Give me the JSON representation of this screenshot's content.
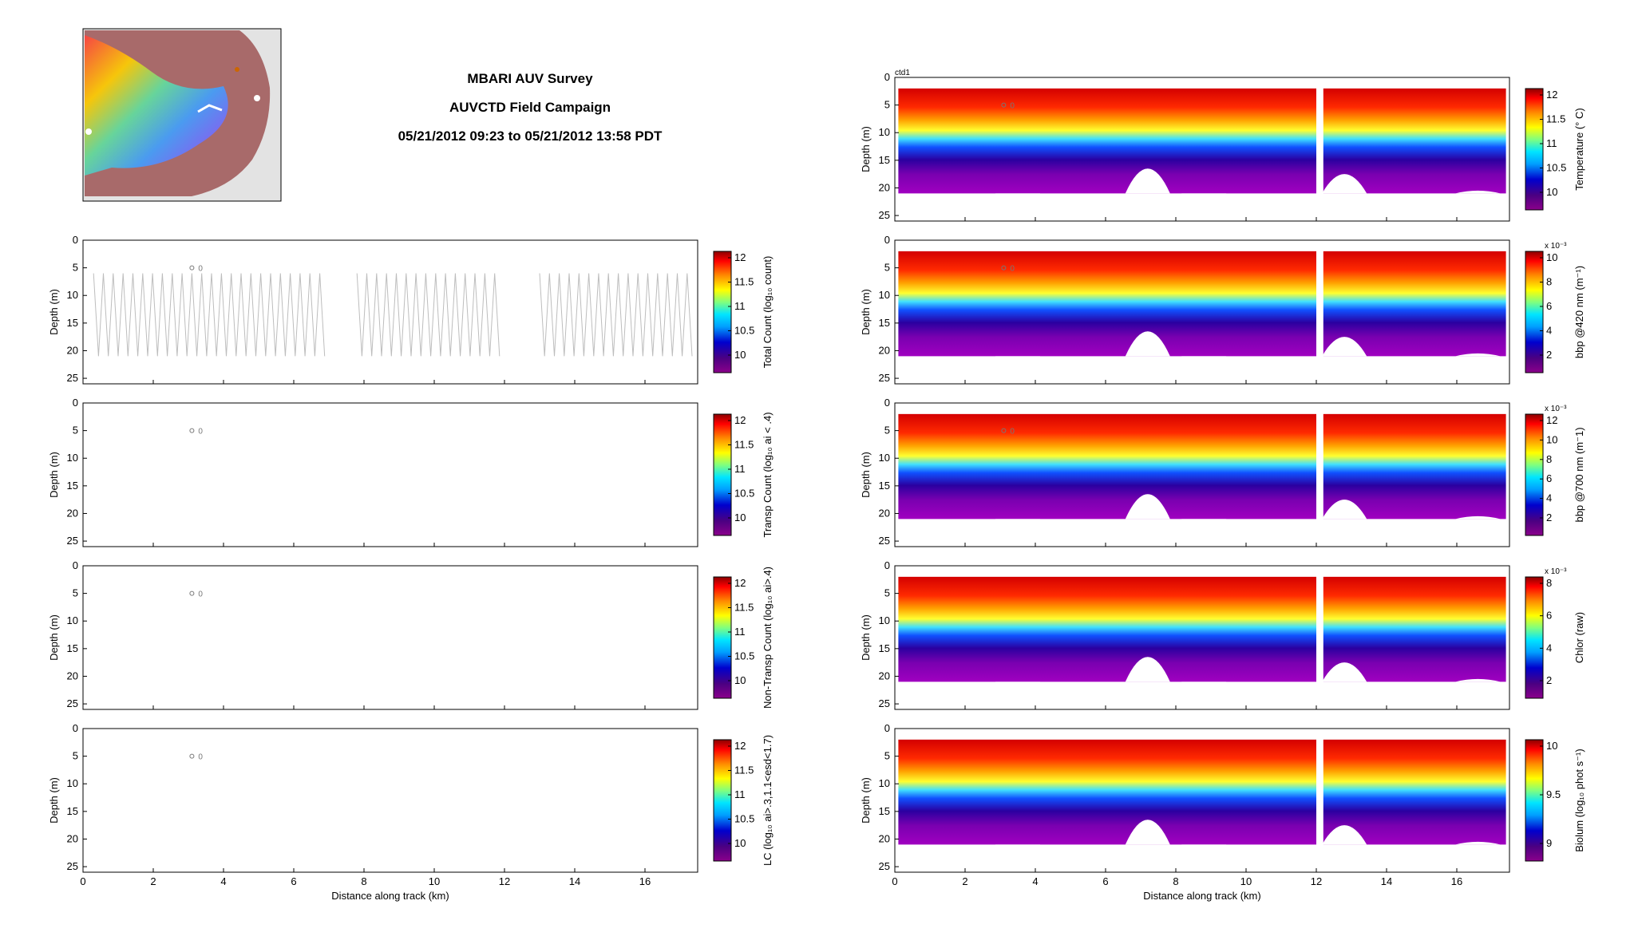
{
  "header": {
    "title_line1": "MBARI AUV Survey",
    "title_line2": "AUVCTD Field Campaign",
    "title_line3": "05/21/2012 09:23 to 05/21/2012 13:58 PDT"
  },
  "colors": {
    "map_land": "#e3e3e3",
    "map_shelf": "#a86a6a",
    "track_line": "#bdbdbd",
    "frame": "#000000",
    "marker": "#777777",
    "colormap": [
      "#8b008b",
      "#4b0082",
      "#0000cd",
      "#00a0ff",
      "#00e5ff",
      "#7fff7f",
      "#ffff00",
      "#ff8c00",
      "#ff0000",
      "#8b0000"
    ]
  },
  "chart_data": [
    {
      "name": "Total Count",
      "type": "line",
      "panel_tag": "",
      "ylabel": "Depth (m)",
      "y_ticks": [
        "0",
        "5",
        "10",
        "15",
        "20",
        "25"
      ],
      "ylim": [
        26,
        0
      ],
      "xlim": [
        0,
        17.5
      ],
      "x_ticks": [],
      "xlabel": "",
      "marker_text": "0",
      "series": [
        {
          "x": [
            0,
            7,
            8,
            12.2,
            13,
            17.5
          ],
          "values": [
            13,
            13,
            13,
            13,
            13,
            13
          ]
        }
      ],
      "depth_range_profile": [
        6,
        21
      ],
      "colorbar": {
        "label": "Total Count (log₁₀ count)",
        "ticks": [
          "12",
          "11.5",
          "11",
          "10.5",
          "10"
        ],
        "exponent": ""
      }
    },
    {
      "name": "Transp Count",
      "type": "heatmap",
      "panel_tag": "",
      "ylabel": "Depth (m)",
      "y_ticks": [
        "0",
        "5",
        "10",
        "15",
        "20",
        "25"
      ],
      "ylim": [
        26,
        0
      ],
      "xlim": [
        0,
        17.5
      ],
      "x_ticks": [],
      "xlabel": "",
      "marker_text": "0",
      "colorbar": {
        "label": "Transp Count (log₁₀ ai < .4)",
        "ticks": [
          "12",
          "11.5",
          "11",
          "10.5",
          "10"
        ],
        "exponent": ""
      }
    },
    {
      "name": "Non-Transp Count",
      "type": "heatmap",
      "panel_tag": "",
      "ylabel": "Depth (m)",
      "y_ticks": [
        "0",
        "5",
        "10",
        "15",
        "20",
        "25"
      ],
      "ylim": [
        26,
        0
      ],
      "xlim": [
        0,
        17.5
      ],
      "x_ticks": [],
      "xlabel": "",
      "marker_text": "0",
      "colorbar": {
        "label": "Non-Transp Count (log₁₀ ai>.4)",
        "ticks": [
          "12",
          "11.5",
          "11",
          "10.5",
          "10"
        ],
        "exponent": ""
      }
    },
    {
      "name": "LC",
      "type": "heatmap",
      "panel_tag": "",
      "ylabel": "Depth (m)",
      "y_ticks": [
        "0",
        "5",
        "10",
        "15",
        "20",
        "25"
      ],
      "ylim": [
        26,
        0
      ],
      "xlim": [
        0,
        17.5
      ],
      "x_ticks": [
        "0",
        "2",
        "4",
        "6",
        "8",
        "10",
        "12",
        "14",
        "16"
      ],
      "xlabel": "Distance along track (km)",
      "marker_text": "0",
      "colorbar": {
        "label": "LC (log₁₀ ai>.3,1.1<esd<1.7)",
        "ticks": [
          "12",
          "11.5",
          "11",
          "10.5",
          "10"
        ],
        "exponent": ""
      }
    },
    {
      "name": "Temperature",
      "type": "heatmap",
      "panel_tag": "ctd1",
      "ylabel": "Depth (m)",
      "y_ticks": [
        "0",
        "5",
        "10",
        "15",
        "20",
        "25"
      ],
      "ylim": [
        26,
        0
      ],
      "xlim": [
        0,
        17.5
      ],
      "x_ticks": [],
      "xlabel": "",
      "marker_text": "0",
      "colorbar": {
        "label": "Temperature (° C)",
        "ticks": [
          "12",
          "11.5",
          "11",
          "10.5",
          "10"
        ],
        "exponent": ""
      }
    },
    {
      "name": "bbp 420",
      "type": "heatmap",
      "panel_tag": "",
      "ylabel": "Depth (m)",
      "y_ticks": [
        "0",
        "5",
        "10",
        "15",
        "20",
        "25"
      ],
      "ylim": [
        26,
        0
      ],
      "xlim": [
        0,
        17.5
      ],
      "x_ticks": [],
      "xlabel": "",
      "marker_text": "0",
      "colorbar": {
        "label": "bbp @420 nm (m⁻¹)",
        "ticks": [
          "10",
          "8",
          "6",
          "4",
          "2"
        ],
        "exponent": "x 10⁻³"
      }
    },
    {
      "name": "bbp 700",
      "type": "heatmap",
      "panel_tag": "",
      "ylabel": "Depth (m)",
      "y_ticks": [
        "0",
        "5",
        "10",
        "15",
        "20",
        "25"
      ],
      "ylim": [
        26,
        0
      ],
      "xlim": [
        0,
        17.5
      ],
      "x_ticks": [],
      "xlabel": "",
      "marker_text": "0",
      "colorbar": {
        "label": "bbp @700 nm (m⁻1)",
        "ticks": [
          "12",
          "10",
          "8",
          "6",
          "4",
          "2"
        ],
        "exponent": "x 10⁻³"
      }
    },
    {
      "name": "Chlor",
      "type": "heatmap",
      "panel_tag": "",
      "ylabel": "Depth (m)",
      "y_ticks": [
        "0",
        "5",
        "10",
        "15",
        "20",
        "25"
      ],
      "ylim": [
        26,
        0
      ],
      "xlim": [
        0,
        17.5
      ],
      "x_ticks": [],
      "xlabel": "",
      "marker_text": "",
      "colorbar": {
        "label": "Chlor (raw)",
        "ticks": [
          "8",
          "6",
          "4",
          "2"
        ],
        "exponent": "x 10⁻³"
      }
    },
    {
      "name": "Biolum",
      "type": "heatmap",
      "panel_tag": "",
      "ylabel": "Depth (m)",
      "y_ticks": [
        "0",
        "5",
        "10",
        "15",
        "20",
        "25"
      ],
      "ylim": [
        26,
        0
      ],
      "xlim": [
        0,
        17.5
      ],
      "x_ticks": [
        "0",
        "2",
        "4",
        "6",
        "8",
        "10",
        "12",
        "14",
        "16"
      ],
      "xlabel": "Distance along track (km)",
      "marker_text": "",
      "colorbar": {
        "label": "Biolum (log₁₀ phot s⁻¹)",
        "ticks": [
          "10",
          "9.5",
          "9"
        ],
        "exponent": ""
      }
    }
  ]
}
